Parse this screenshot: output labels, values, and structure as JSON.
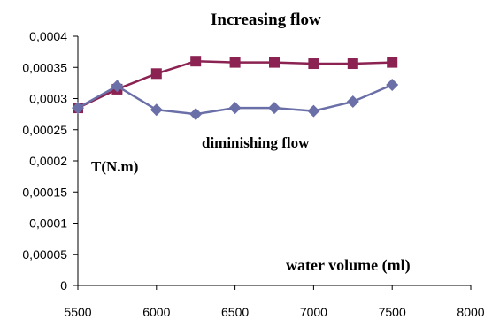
{
  "chart_data": {
    "type": "line",
    "title": "",
    "xlabel": "water volume (ml)",
    "ylabel": "T(N.m)",
    "xlim": [
      5500,
      8000
    ],
    "ylim": [
      0,
      0.0004
    ],
    "x_ticks": [
      "5500",
      "6000",
      "6500",
      "7000",
      "7500",
      "8000"
    ],
    "y_ticks": [
      "0",
      "0,00005",
      "0,0001",
      "0,00015",
      "0,0002",
      "0,00025",
      "0,0003",
      "0,00035",
      "0,0004"
    ],
    "grid": false,
    "series": [
      {
        "name": "Increasing flow",
        "marker": "square",
        "color": "#8B2252",
        "x": [
          5500,
          5750,
          6000,
          6250,
          6500,
          6750,
          7000,
          7250,
          7500
        ],
        "values": [
          0.000285,
          0.000315,
          0.00034,
          0.00036,
          0.000358,
          0.000358,
          0.000356,
          0.000356,
          0.000358
        ]
      },
      {
        "name": "diminishing flow",
        "marker": "diamond",
        "color": "#6A6FA8",
        "x": [
          5500,
          5750,
          6000,
          6250,
          6500,
          6750,
          7000,
          7250,
          7500
        ],
        "values": [
          0.000285,
          0.00032,
          0.000282,
          0.000275,
          0.000285,
          0.000285,
          0.00028,
          0.000295,
          0.000322
        ]
      }
    ],
    "annotations": [
      "Increasing flow",
      "diminishing flow"
    ]
  }
}
